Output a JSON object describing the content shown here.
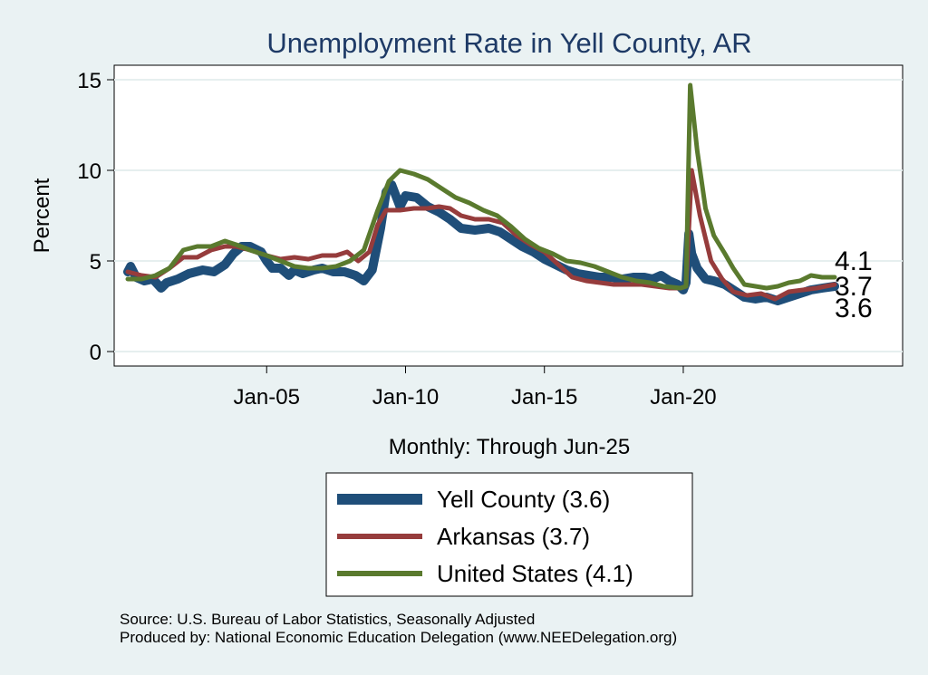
{
  "chart_data": {
    "type": "line",
    "title": "Unemployment Rate in Yell  County, AR",
    "ylabel": "Percent",
    "xlabel": "Monthly: Through Jun-25",
    "ylim": [
      0,
      15
    ],
    "yticks": [
      0,
      5,
      10,
      15
    ],
    "xticks": [
      {
        "label": "Jan-05",
        "value": 2005.0
      },
      {
        "label": "Jan-10",
        "value": 2010.0
      },
      {
        "label": "Jan-15",
        "value": 2015.0
      },
      {
        "label": "Jan-20",
        "value": 2020.0
      }
    ],
    "xlim": [
      2000.0,
      2025.5
    ],
    "grid": true,
    "legend_position": "bottom",
    "series": [
      {
        "name": "Yell  County (3.6)",
        "color": "#1f4e79",
        "points": [
          [
            2000.0,
            4.4
          ],
          [
            2000.1,
            4.7
          ],
          [
            2000.3,
            4.1
          ],
          [
            2000.6,
            3.9
          ],
          [
            2000.9,
            4.0
          ],
          [
            2001.2,
            3.5
          ],
          [
            2001.4,
            3.8
          ],
          [
            2001.8,
            4.0
          ],
          [
            2002.2,
            4.3
          ],
          [
            2002.7,
            4.5
          ],
          [
            2003.1,
            4.4
          ],
          [
            2003.5,
            4.8
          ],
          [
            2003.8,
            5.4
          ],
          [
            2004.1,
            5.8
          ],
          [
            2004.4,
            5.8
          ],
          [
            2004.8,
            5.5
          ],
          [
            2005.0,
            5.0
          ],
          [
            2005.2,
            4.6
          ],
          [
            2005.5,
            4.6
          ],
          [
            2005.8,
            4.2
          ],
          [
            2006.0,
            4.5
          ],
          [
            2006.3,
            4.3
          ],
          [
            2006.7,
            4.5
          ],
          [
            2007.0,
            4.6
          ],
          [
            2007.4,
            4.4
          ],
          [
            2007.8,
            4.4
          ],
          [
            2008.2,
            4.2
          ],
          [
            2008.5,
            3.9
          ],
          [
            2008.8,
            4.5
          ],
          [
            2009.1,
            6.8
          ],
          [
            2009.3,
            8.8
          ],
          [
            2009.5,
            9.2
          ],
          [
            2009.8,
            8.0
          ],
          [
            2010.0,
            8.6
          ],
          [
            2010.4,
            8.5
          ],
          [
            2010.8,
            8.0
          ],
          [
            2011.2,
            7.7
          ],
          [
            2011.6,
            7.3
          ],
          [
            2012.0,
            6.8
          ],
          [
            2012.5,
            6.7
          ],
          [
            2013.0,
            6.8
          ],
          [
            2013.4,
            6.6
          ],
          [
            2013.8,
            6.2
          ],
          [
            2014.2,
            5.8
          ],
          [
            2014.6,
            5.5
          ],
          [
            2015.0,
            5.1
          ],
          [
            2015.4,
            4.8
          ],
          [
            2015.8,
            4.5
          ],
          [
            2016.2,
            4.3
          ],
          [
            2016.6,
            4.2
          ],
          [
            2017.0,
            4.1
          ],
          [
            2017.4,
            4.1
          ],
          [
            2017.8,
            4.0
          ],
          [
            2018.2,
            4.1
          ],
          [
            2018.6,
            4.1
          ],
          [
            2018.9,
            4.0
          ],
          [
            2019.2,
            4.2
          ],
          [
            2019.5,
            3.9
          ],
          [
            2019.8,
            3.7
          ],
          [
            2020.0,
            3.4
          ],
          [
            2020.1,
            3.8
          ],
          [
            2020.2,
            6.5
          ],
          [
            2020.3,
            5.4
          ],
          [
            2020.5,
            4.6
          ],
          [
            2020.8,
            4.0
          ],
          [
            2021.1,
            3.9
          ],
          [
            2021.5,
            3.7
          ],
          [
            2021.8,
            3.4
          ],
          [
            2022.2,
            3.0
          ],
          [
            2022.6,
            2.9
          ],
          [
            2023.0,
            3.0
          ],
          [
            2023.4,
            2.8
          ],
          [
            2023.8,
            3.0
          ],
          [
            2024.2,
            3.2
          ],
          [
            2024.6,
            3.4
          ],
          [
            2025.0,
            3.5
          ],
          [
            2025.45,
            3.6
          ]
        ]
      },
      {
        "name": "Arkansas (3.7)",
        "color": "#963c3c",
        "points": [
          [
            2000.0,
            4.4
          ],
          [
            2000.5,
            4.2
          ],
          [
            2001.0,
            4.1
          ],
          [
            2001.5,
            4.6
          ],
          [
            2002.0,
            5.2
          ],
          [
            2002.5,
            5.2
          ],
          [
            2003.0,
            5.6
          ],
          [
            2003.5,
            5.8
          ],
          [
            2003.9,
            5.8
          ],
          [
            2004.4,
            5.6
          ],
          [
            2005.0,
            5.3
          ],
          [
            2005.5,
            5.1
          ],
          [
            2006.0,
            5.2
          ],
          [
            2006.5,
            5.1
          ],
          [
            2007.0,
            5.3
          ],
          [
            2007.5,
            5.3
          ],
          [
            2007.9,
            5.5
          ],
          [
            2008.3,
            5.0
          ],
          [
            2008.7,
            5.5
          ],
          [
            2009.0,
            7.0
          ],
          [
            2009.3,
            7.8
          ],
          [
            2009.8,
            7.8
          ],
          [
            2010.3,
            7.9
          ],
          [
            2010.8,
            7.9
          ],
          [
            2011.2,
            8.0
          ],
          [
            2011.6,
            7.9
          ],
          [
            2012.0,
            7.5
          ],
          [
            2012.5,
            7.3
          ],
          [
            2013.0,
            7.3
          ],
          [
            2013.5,
            7.1
          ],
          [
            2014.0,
            6.4
          ],
          [
            2014.5,
            5.9
          ],
          [
            2015.0,
            5.5
          ],
          [
            2015.5,
            4.8
          ],
          [
            2016.0,
            4.1
          ],
          [
            2016.5,
            3.9
          ],
          [
            2017.0,
            3.8
          ],
          [
            2017.5,
            3.7
          ],
          [
            2018.0,
            3.7
          ],
          [
            2018.5,
            3.7
          ],
          [
            2019.0,
            3.6
          ],
          [
            2019.5,
            3.5
          ],
          [
            2019.9,
            3.5
          ],
          [
            2020.1,
            3.6
          ],
          [
            2020.3,
            10.0
          ],
          [
            2020.6,
            7.5
          ],
          [
            2021.0,
            5.0
          ],
          [
            2021.4,
            4.0
          ],
          [
            2021.8,
            3.3
          ],
          [
            2022.3,
            3.1
          ],
          [
            2022.8,
            3.2
          ],
          [
            2023.3,
            2.9
          ],
          [
            2023.8,
            3.3
          ],
          [
            2024.3,
            3.4
          ],
          [
            2024.8,
            3.5
          ],
          [
            2025.45,
            3.7
          ]
        ]
      },
      {
        "name": "United States (4.1)",
        "color": "#5a7a2e",
        "points": [
          [
            2000.0,
            4.0
          ],
          [
            2000.5,
            4.0
          ],
          [
            2001.0,
            4.2
          ],
          [
            2001.5,
            4.6
          ],
          [
            2002.0,
            5.6
          ],
          [
            2002.5,
            5.8
          ],
          [
            2003.0,
            5.8
          ],
          [
            2003.5,
            6.1
          ],
          [
            2003.9,
            5.9
          ],
          [
            2004.4,
            5.6
          ],
          [
            2005.0,
            5.3
          ],
          [
            2005.5,
            5.0
          ],
          [
            2006.0,
            4.7
          ],
          [
            2006.5,
            4.6
          ],
          [
            2007.0,
            4.6
          ],
          [
            2007.5,
            4.7
          ],
          [
            2008.0,
            5.0
          ],
          [
            2008.5,
            5.6
          ],
          [
            2009.0,
            7.8
          ],
          [
            2009.4,
            9.4
          ],
          [
            2009.8,
            10.0
          ],
          [
            2010.3,
            9.8
          ],
          [
            2010.8,
            9.5
          ],
          [
            2011.3,
            9.0
          ],
          [
            2011.8,
            8.5
          ],
          [
            2012.3,
            8.2
          ],
          [
            2012.8,
            7.8
          ],
          [
            2013.3,
            7.5
          ],
          [
            2013.8,
            6.9
          ],
          [
            2014.3,
            6.2
          ],
          [
            2014.8,
            5.7
          ],
          [
            2015.3,
            5.4
          ],
          [
            2015.8,
            5.0
          ],
          [
            2016.3,
            4.9
          ],
          [
            2016.8,
            4.7
          ],
          [
            2017.3,
            4.4
          ],
          [
            2017.8,
            4.1
          ],
          [
            2018.3,
            3.9
          ],
          [
            2018.8,
            3.8
          ],
          [
            2019.3,
            3.6
          ],
          [
            2019.9,
            3.5
          ],
          [
            2020.1,
            3.6
          ],
          [
            2020.25,
            14.7
          ],
          [
            2020.5,
            11.1
          ],
          [
            2020.8,
            7.9
          ],
          [
            2021.1,
            6.4
          ],
          [
            2021.5,
            5.4
          ],
          [
            2021.8,
            4.6
          ],
          [
            2022.2,
            3.7
          ],
          [
            2022.6,
            3.6
          ],
          [
            2023.0,
            3.5
          ],
          [
            2023.4,
            3.6
          ],
          [
            2023.8,
            3.8
          ],
          [
            2024.2,
            3.9
          ],
          [
            2024.6,
            4.2
          ],
          [
            2025.0,
            4.1
          ],
          [
            2025.45,
            4.1
          ]
        ]
      }
    ],
    "end_labels": [
      {
        "text": "4.1",
        "value": 4.1,
        "color": "#5a7a2e"
      },
      {
        "text": "3.7",
        "value": 3.7,
        "color": "#963c3c"
      },
      {
        "text": "3.6",
        "value": 3.6,
        "color": "#1f4e79"
      }
    ]
  },
  "legend": {
    "items": [
      {
        "label": "Yell  County (3.6)",
        "color": "#1f4e79"
      },
      {
        "label": "Arkansas (3.7)",
        "color": "#963c3c"
      },
      {
        "label": "United States (4.1)",
        "color": "#5a7a2e"
      }
    ]
  },
  "source": {
    "line1": "Source: U.S. Bureau of Labor Statistics, Seasonally Adjusted",
    "line2": "Produced by: National Economic Education Delegation (www.NEEDelegation.org)"
  },
  "colors": {
    "background": "#eaf2f3",
    "plot_background": "#ffffff",
    "grid": "#e6efef",
    "title": "#1e3a66"
  }
}
